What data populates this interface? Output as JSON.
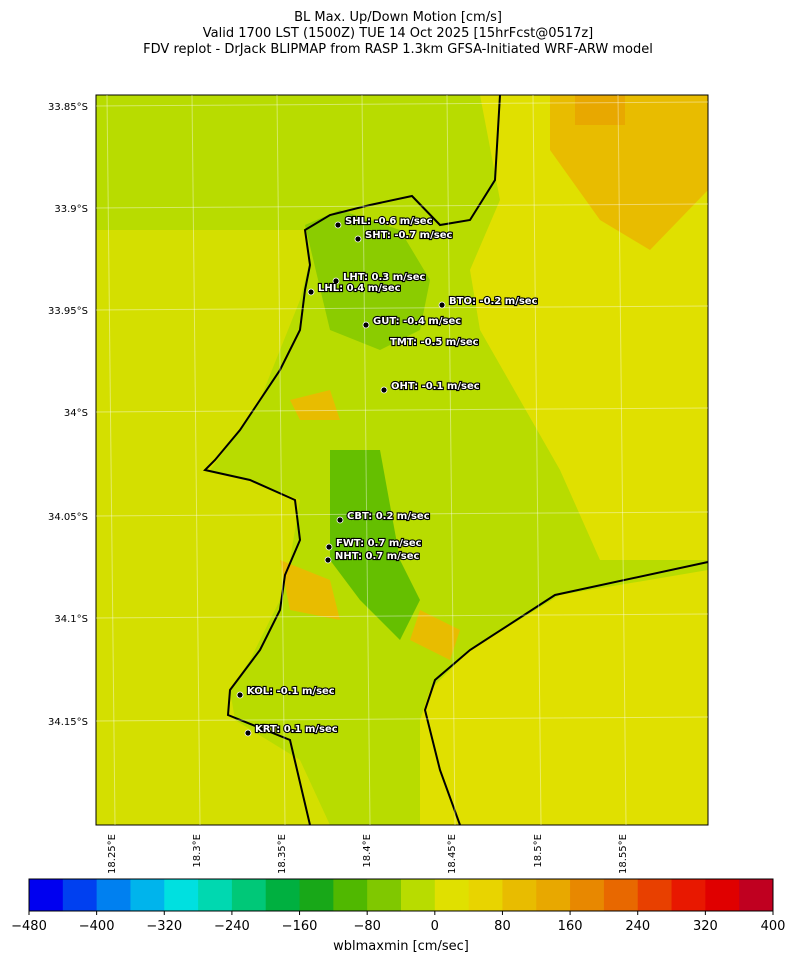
{
  "header": {
    "title_lines": [
      "BL Max. Up/Down Motion [cm/s]",
      "Valid 1700 LST (1500Z) TUE 14 Oct 2025 [15hrFcst@0517z]",
      "FDV replot - DrJack BLIPMAP from RASP 1.3km GFSA-Initiated WRF-ARW model"
    ]
  },
  "map": {
    "lat_labels": [
      "33.85°S",
      "33.9°S",
      "33.95°S",
      "34°S",
      "34.05°S",
      "34.1°S",
      "34.15°S"
    ],
    "lon_labels": [
      "18.25°E",
      "18.3°E",
      "18.35°E",
      "18.4°E",
      "18.45°E",
      "18.5°E",
      "18.55°E"
    ],
    "stations": [
      {
        "label": "SHL: -0.6 m/sec"
      },
      {
        "label": "SHT: -0.7 m/sec"
      },
      {
        "label": "LHT: 0.3 m/sec"
      },
      {
        "label": "LHL: 0.4 m/sec"
      },
      {
        "label": "BTO: -0.2 m/sec"
      },
      {
        "label": "GUT: -0.4 m/sec"
      },
      {
        "label": "TMT: -0.5 m/sec"
      },
      {
        "label": "OHT: -0.1 m/sec"
      },
      {
        "label": "CBT: 0.2 m/sec"
      },
      {
        "label": "FWT: 0.7 m/sec"
      },
      {
        "label": "NHT: 0.7 m/sec"
      },
      {
        "label": "KOL: -0.1 m/sec"
      },
      {
        "label": "KRT: 0.1 m/sec"
      }
    ]
  },
  "colorbar": {
    "label": "wblmaxmin [cm/sec]",
    "lim": [
      -480,
      400
    ],
    "ticks": [
      {
        "value": -480,
        "label": "−480"
      },
      {
        "value": -400,
        "label": "−400"
      },
      {
        "value": -320,
        "label": "−320"
      },
      {
        "value": -240,
        "label": "−240"
      },
      {
        "value": -160,
        "label": "−160"
      },
      {
        "value": -80,
        "label": "−80"
      },
      0,
      80,
      160,
      240,
      320,
      400
    ],
    "colors": [
      "#0000f0",
      "#0040f0",
      "#0080f0",
      "#00b4ec",
      "#00e0e0",
      "#00d8b0",
      "#00c878",
      "#00b040",
      "#18a818",
      "#50b800",
      "#80c800",
      "#b8dc00",
      "#e0e000",
      "#e8d400",
      "#e8bc00",
      "#e8a800",
      "#e88800",
      "#e86800",
      "#e84000",
      "#e81800",
      "#e00000",
      "#c00020"
    ]
  }
}
